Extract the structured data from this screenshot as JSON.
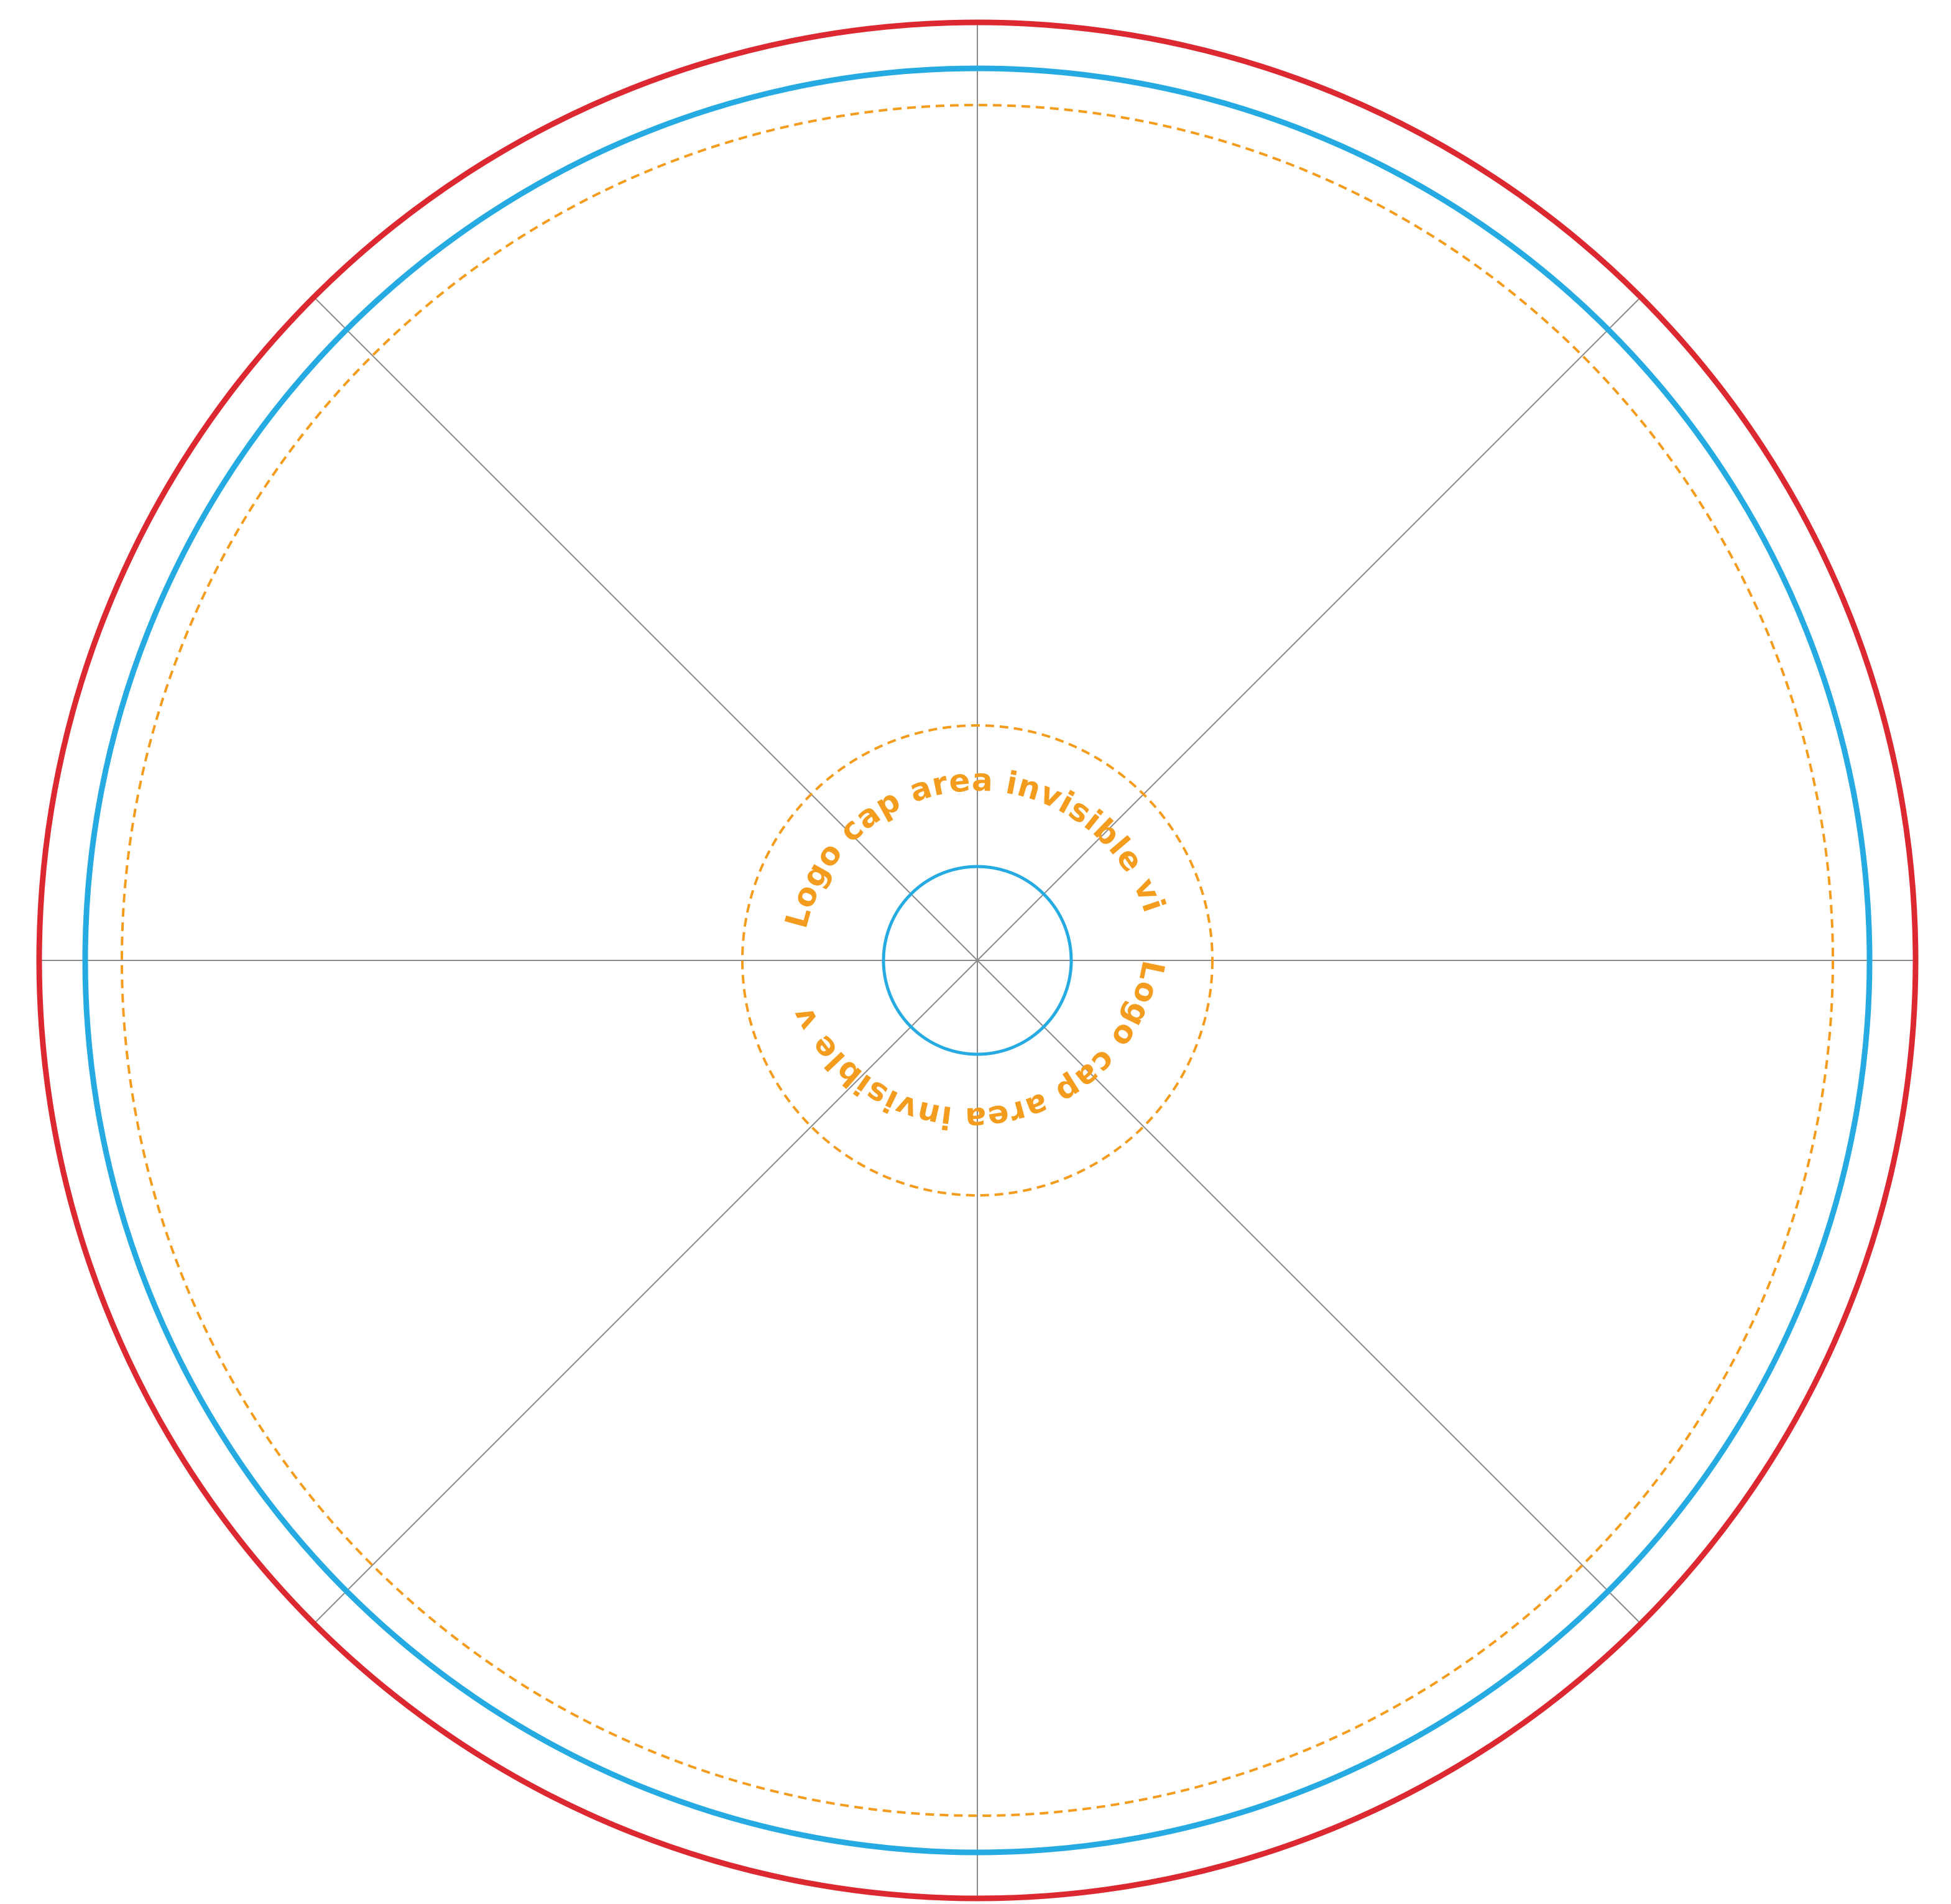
{
  "template": {
    "colors": {
      "bleed": "#dc2830",
      "trim": "#25aae1",
      "safe": "#f39c1e",
      "divider": "#8a8a8a",
      "background": "#ffffff"
    },
    "segment_count": 8,
    "cap_label_top": "Logo cap area invisible view",
    "cap_label_bottom": "Logo cap area invisible view"
  }
}
